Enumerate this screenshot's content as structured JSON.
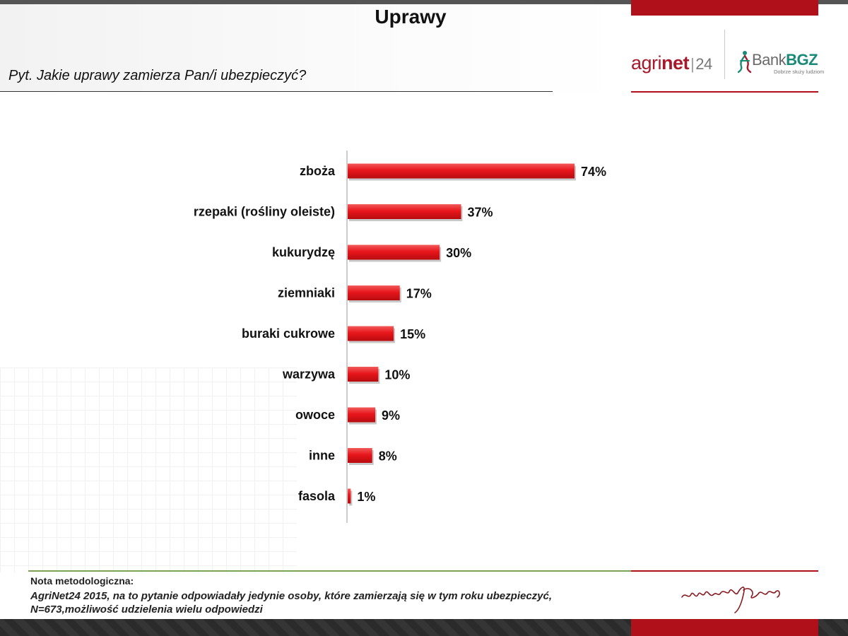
{
  "header": {
    "title": "Uprawy",
    "question": "Pyt. Jakie uprawy zamierza Pan/i ubezpieczyć?"
  },
  "logos": {
    "agrinet_part1": "agri",
    "agrinet_part2": "net",
    "agrinet_sep": "|",
    "agrinet_part3": "24",
    "bank_part1": "Bank",
    "bank_part2": "BGZ",
    "bank_tagline": "Dobrze służy ludziom"
  },
  "chart_data": {
    "type": "bar",
    "orientation": "horizontal",
    "categories": [
      "zboża",
      "rzepaki (rośliny oleiste)",
      "kukurydzę",
      "ziemniaki",
      "buraki cukrowe",
      "warzywa",
      "owoce",
      "inne",
      "fasola"
    ],
    "values": [
      74,
      37,
      30,
      17,
      15,
      10,
      9,
      8,
      1
    ],
    "value_labels": [
      "74%",
      "37%",
      "30%",
      "17%",
      "15%",
      "10%",
      "9%",
      "8%",
      "1%"
    ],
    "xlim": [
      0,
      100
    ],
    "grid": false,
    "bar_color": "#e8161b"
  },
  "footer": {
    "note_title": "Nota metodologiczna:",
    "note_line1": "AgriNet24 2015, na to pytanie odpowiadały jedynie osoby, które zamierzają się w tym roku ubezpieczyć,",
    "note_line2": "N=673,możliwość udzielenia wielu odpowiedzi"
  },
  "colors": {
    "accent_red": "#b0101a",
    "accent_green": "#7aa356"
  }
}
